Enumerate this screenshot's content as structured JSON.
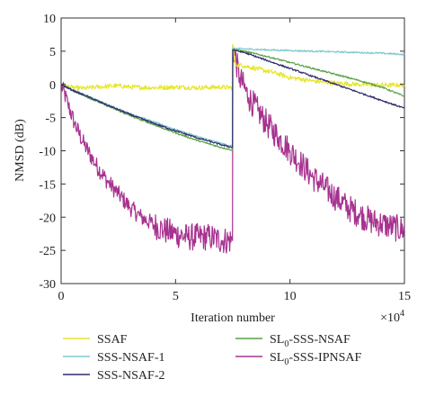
{
  "chart_data": {
    "type": "line",
    "xlabel": "Iteration number",
    "ylabel": "NMSD (dB)",
    "x_multiplier": "×10",
    "x_multiplier_exp": "4",
    "xlim": [
      0,
      15
    ],
    "ylim": [
      -30,
      10
    ],
    "x_ticks": [
      0,
      5,
      10,
      15
    ],
    "y_ticks": [
      10,
      5,
      0,
      -5,
      -10,
      -15,
      -20,
      -25,
      -30
    ],
    "grid": false,
    "legend_position": "bottom",
    "series": [
      {
        "name": "SSAF",
        "color": "#e6e62e",
        "points": [
          [
            0,
            0
          ],
          [
            0.5,
            -0.5
          ],
          [
            1,
            -0.6
          ],
          [
            1.5,
            -0.4
          ],
          [
            2,
            -0.3
          ],
          [
            2.5,
            -0.2
          ],
          [
            3,
            -0.4
          ],
          [
            4,
            -0.5
          ],
          [
            5,
            -0.4
          ],
          [
            6,
            -0.5
          ],
          [
            7,
            -0.4
          ],
          [
            7.49,
            -0.5
          ],
          [
            7.5,
            6
          ],
          [
            7.6,
            3
          ],
          [
            8,
            2.8
          ],
          [
            8.5,
            2.4
          ],
          [
            9,
            2.0
          ],
          [
            9.5,
            1.6
          ],
          [
            10,
            1.0
          ],
          [
            10.5,
            0.8
          ],
          [
            11,
            0.5
          ],
          [
            12,
            0.2
          ],
          [
            13,
            0.0
          ],
          [
            14,
            -0.1
          ],
          [
            15,
            -0.1
          ]
        ],
        "noise": 0.35
      },
      {
        "name": "SSS-NSAF-1",
        "color": "#7fc8cf",
        "points": [
          [
            0,
            0
          ],
          [
            0.5,
            -0.8
          ],
          [
            1,
            -1.5
          ],
          [
            2,
            -3.0
          ],
          [
            3,
            -4.4
          ],
          [
            4,
            -5.6
          ],
          [
            5,
            -6.8
          ],
          [
            6,
            -7.9
          ],
          [
            7,
            -8.9
          ],
          [
            7.49,
            -9.3
          ],
          [
            7.5,
            5.4
          ],
          [
            8,
            5.35
          ],
          [
            9,
            5.2
          ],
          [
            10,
            5.1
          ],
          [
            11,
            5.0
          ],
          [
            12,
            4.9
          ],
          [
            13,
            4.8
          ],
          [
            14,
            4.7
          ],
          [
            15,
            4.5
          ]
        ],
        "noise": 0.12
      },
      {
        "name": "SSS-NSAF-2",
        "color": "#2f2c6e",
        "points": [
          [
            0,
            0
          ],
          [
            0.5,
            -0.9
          ],
          [
            1,
            -1.6
          ],
          [
            2,
            -3.1
          ],
          [
            3,
            -4.5
          ],
          [
            4,
            -5.8
          ],
          [
            5,
            -7.0
          ],
          [
            6,
            -8.1
          ],
          [
            7,
            -9.1
          ],
          [
            7.49,
            -9.5
          ],
          [
            7.5,
            5.2
          ],
          [
            8,
            4.8
          ],
          [
            9,
            3.6
          ],
          [
            10,
            2.4
          ],
          [
            11,
            1.2
          ],
          [
            12,
            0.0
          ],
          [
            13,
            -1.2
          ],
          [
            14,
            -2.4
          ],
          [
            15,
            -3.6
          ]
        ],
        "noise": 0.12
      },
      {
        "name": "SL0-SSS-NSAF",
        "color": "#5aa145",
        "points": [
          [
            0,
            0
          ],
          [
            0.5,
            -0.9
          ],
          [
            1,
            -1.7
          ],
          [
            2,
            -3.2
          ],
          [
            3,
            -4.7
          ],
          [
            4,
            -6.0
          ],
          [
            5,
            -7.3
          ],
          [
            6,
            -8.5
          ],
          [
            7,
            -9.5
          ],
          [
            7.49,
            -9.9
          ],
          [
            7.5,
            5.3
          ],
          [
            8,
            5.0
          ],
          [
            9,
            4.2
          ],
          [
            10,
            3.3
          ],
          [
            11,
            2.4
          ],
          [
            12,
            1.5
          ],
          [
            13,
            0.6
          ],
          [
            14,
            -0.4
          ],
          [
            15,
            -1.8
          ]
        ],
        "noise": 0.12
      },
      {
        "name": "SL0-SSS-IPNSAF",
        "color": "#a7328f",
        "points": [
          [
            0,
            0
          ],
          [
            0.3,
            -3
          ],
          [
            0.6,
            -6
          ],
          [
            1,
            -9
          ],
          [
            1.5,
            -12
          ],
          [
            2,
            -14.5
          ],
          [
            2.5,
            -16.5
          ],
          [
            3,
            -18.5
          ],
          [
            3.5,
            -20
          ],
          [
            4,
            -21
          ],
          [
            4.5,
            -22
          ],
          [
            5,
            -22.5
          ],
          [
            5.5,
            -23
          ],
          [
            6,
            -23
          ],
          [
            6.5,
            -23
          ],
          [
            7,
            -23.5
          ],
          [
            7.49,
            -23.5
          ],
          [
            7.5,
            5.8
          ],
          [
            7.8,
            1
          ],
          [
            8.2,
            -2
          ],
          [
            8.6,
            -4
          ],
          [
            9,
            -6
          ],
          [
            9.5,
            -8
          ],
          [
            10,
            -10
          ],
          [
            10.5,
            -12
          ],
          [
            11,
            -14
          ],
          [
            11.5,
            -15.5
          ],
          [
            12,
            -17
          ],
          [
            12.5,
            -18.5
          ],
          [
            13,
            -19.5
          ],
          [
            13.5,
            -20.5
          ],
          [
            14,
            -21
          ],
          [
            14.5,
            -21.5
          ],
          [
            15,
            -22
          ]
        ],
        "noise": 1.3
      }
    ]
  },
  "legend": [
    {
      "text": "SSAF",
      "sub": "",
      "rest": ""
    },
    {
      "text": "SSS-NSAF-1",
      "sub": "",
      "rest": ""
    },
    {
      "text": "SSS-NSAF-2",
      "sub": "",
      "rest": ""
    },
    {
      "text": "SL",
      "sub": "0",
      "rest": "-SSS-NSAF"
    },
    {
      "text": "SL",
      "sub": "0",
      "rest": "-SSS-IPNSAF"
    }
  ]
}
